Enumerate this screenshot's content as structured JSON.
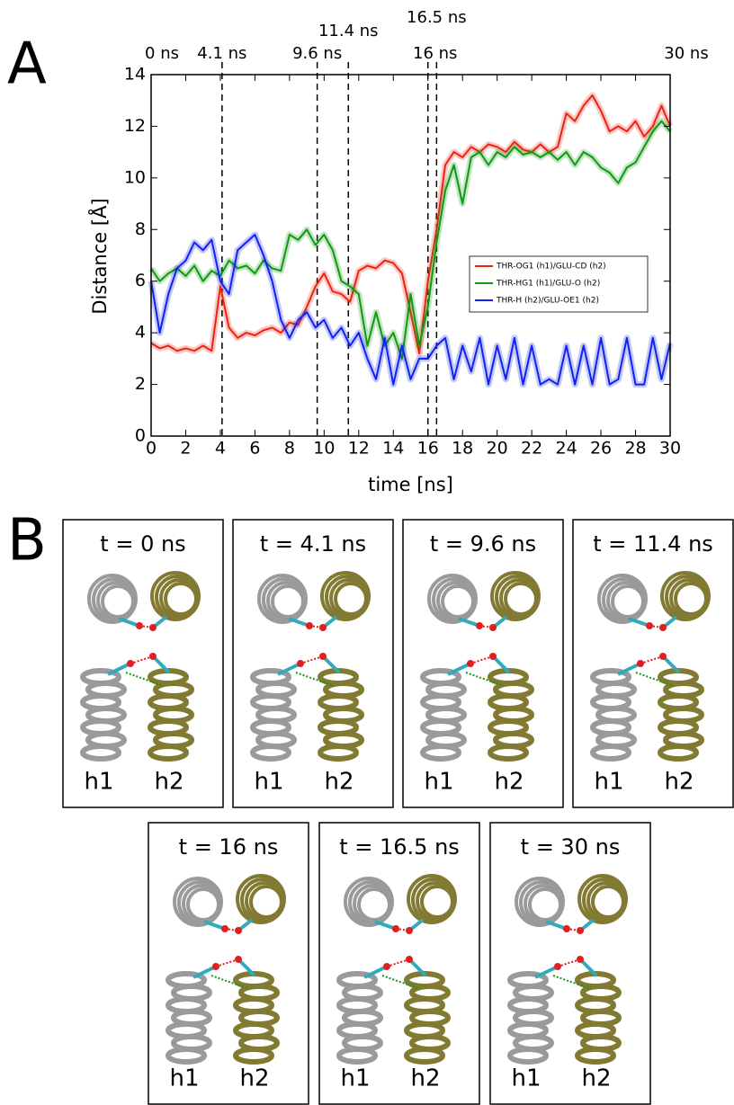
{
  "panels": {
    "a": "A",
    "b": "B"
  },
  "chart_data": {
    "type": "line",
    "xlabel": "time [ns]",
    "ylabel": "Distance [Å]",
    "xlim": [
      0,
      30
    ],
    "ylim": [
      0,
      14
    ],
    "xticks": [
      0,
      2,
      4,
      6,
      8,
      10,
      12,
      14,
      16,
      18,
      20,
      22,
      24,
      26,
      28,
      30
    ],
    "yticks": [
      0,
      2,
      4,
      6,
      8,
      10,
      12,
      14
    ],
    "top_ticks": [
      {
        "value": 0,
        "label": "0 ns"
      },
      {
        "value": 4.1,
        "label": "4.1 ns"
      },
      {
        "value": 9.6,
        "label": "9.6 ns"
      },
      {
        "value": 11.4,
        "label": "11.4 ns"
      },
      {
        "value": 16,
        "label": "16 ns"
      },
      {
        "value": 16.5,
        "label": "16.5 ns"
      },
      {
        "value": 30,
        "label": "30 ns"
      }
    ],
    "legend_position": "right",
    "x": [
      0,
      0.5,
      1,
      1.5,
      2,
      2.5,
      3,
      3.5,
      4,
      4.5,
      5,
      5.5,
      6,
      6.5,
      7,
      7.5,
      8,
      8.5,
      9,
      9.5,
      10,
      10.5,
      11,
      11.5,
      12,
      12.5,
      13,
      13.5,
      14,
      14.5,
      15,
      15.5,
      16,
      16.5,
      17,
      17.5,
      18,
      18.5,
      19,
      19.5,
      20,
      20.5,
      21,
      21.5,
      22,
      22.5,
      23,
      23.5,
      24,
      24.5,
      25,
      25.5,
      26,
      26.5,
      27,
      27.5,
      28,
      28.5,
      29,
      29.5,
      30
    ],
    "series": [
      {
        "name": "THR-OG1 (h1)/GLU-CD (h2)",
        "color": "#ee2211",
        "values": [
          3.6,
          3.4,
          3.5,
          3.3,
          3.4,
          3.3,
          3.5,
          3.3,
          5.8,
          4.2,
          3.8,
          4.0,
          3.9,
          4.1,
          4.2,
          4.0,
          4.4,
          4.3,
          5.0,
          5.8,
          6.3,
          5.6,
          5.5,
          5.2,
          6.4,
          6.6,
          6.5,
          6.8,
          6.7,
          6.3,
          4.8,
          3.2,
          6.0,
          8.0,
          10.5,
          11.0,
          10.8,
          11.2,
          11.0,
          11.3,
          11.2,
          11.0,
          11.4,
          11.1,
          11.0,
          11.3,
          11.0,
          11.2,
          12.5,
          12.2,
          12.8,
          13.2,
          12.6,
          11.8,
          12.0,
          11.8,
          12.2,
          11.6,
          12.0,
          12.8,
          12.0
        ]
      },
      {
        "name": "THR-HG1 (h1)/GLU-O (h2)",
        "color": "#119911",
        "values": [
          6.5,
          6.0,
          6.3,
          6.5,
          6.2,
          6.6,
          6.0,
          6.4,
          6.2,
          6.8,
          6.5,
          6.6,
          6.3,
          6.8,
          6.5,
          6.4,
          7.8,
          7.6,
          8.0,
          7.4,
          7.8,
          7.2,
          6.0,
          5.8,
          5.5,
          3.5,
          4.8,
          3.5,
          4.0,
          3.0,
          5.5,
          3.5,
          5.0,
          7.5,
          9.5,
          10.5,
          9.0,
          10.8,
          11.0,
          10.5,
          11.0,
          10.8,
          11.2,
          10.9,
          11.0,
          10.8,
          11.0,
          10.7,
          11.0,
          10.5,
          11.0,
          10.8,
          10.4,
          10.2,
          9.8,
          10.4,
          10.6,
          11.2,
          11.8,
          12.2,
          11.8
        ]
      },
      {
        "name": "THR-H (h2)/GLU-OE1 (h2)",
        "color": "#1122ee",
        "values": [
          6.0,
          4.0,
          5.5,
          6.5,
          6.8,
          7.5,
          7.2,
          7.6,
          6.0,
          5.5,
          7.2,
          7.5,
          7.8,
          7.0,
          6.0,
          4.5,
          3.8,
          4.5,
          4.8,
          4.2,
          4.5,
          3.8,
          4.2,
          3.5,
          4.0,
          3.0,
          2.2,
          3.8,
          2.0,
          3.5,
          2.2,
          3.0,
          3.0,
          3.5,
          3.8,
          2.2,
          3.5,
          2.5,
          3.8,
          2.0,
          3.5,
          2.2,
          3.8,
          2.0,
          3.5,
          2.0,
          2.2,
          2.0,
          3.5,
          2.0,
          3.5,
          2.0,
          3.8,
          2.0,
          2.2,
          3.8,
          2.0,
          2.0,
          3.8,
          2.2,
          3.6
        ]
      }
    ]
  },
  "snapshots": [
    {
      "title": "t = 0 ns",
      "labels": [
        "h1",
        "h2"
      ]
    },
    {
      "title": "t = 4.1 ns",
      "labels": [
        "h1",
        "h2"
      ]
    },
    {
      "title": "t = 9.6 ns",
      "labels": [
        "h1",
        "h2"
      ]
    },
    {
      "title": "t = 11.4 ns",
      "labels": [
        "h1",
        "h2"
      ]
    },
    {
      "title": "t = 16 ns",
      "labels": [
        "h1",
        "h2"
      ]
    },
    {
      "title": "t = 16.5 ns",
      "labels": [
        "h1",
        "h2"
      ]
    },
    {
      "title": "t = 30 ns",
      "labels": [
        "h1",
        "h2"
      ]
    }
  ]
}
